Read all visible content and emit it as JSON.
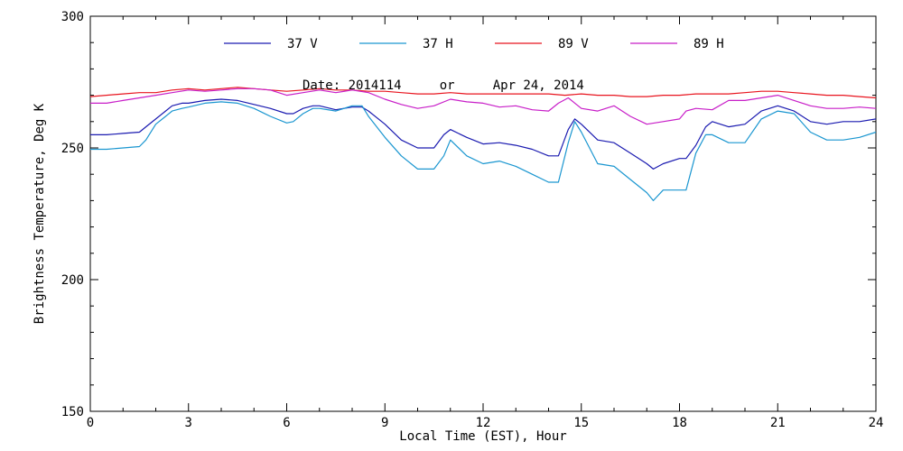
{
  "chart_data": {
    "type": "line",
    "annotation": "Date: 2014114     or     Apr 24, 2014",
    "xlabel": "Local Time (EST), Hour",
    "ylabel": "Brightness Temperature, Deg K",
    "xlim": [
      0,
      24
    ],
    "ylim": [
      150,
      300
    ],
    "xticks": [
      0,
      3,
      6,
      9,
      12,
      15,
      18,
      21,
      24
    ],
    "yticks": [
      150,
      200,
      250,
      300
    ],
    "legend_position": "top",
    "grid": false,
    "series": [
      {
        "name": "37 V",
        "color": "#1a1ab0",
        "x": [
          0,
          0.5,
          1,
          1.5,
          1.7,
          2,
          2.3,
          2.5,
          2.8,
          3,
          3.5,
          4,
          4.5,
          5,
          5.5,
          6,
          6.2,
          6.5,
          6.8,
          7,
          7.5,
          8,
          8.3,
          8.5,
          9,
          9.5,
          10,
          10.5,
          10.8,
          11,
          11.5,
          12,
          12.5,
          13,
          13.5,
          14,
          14.3,
          14.6,
          14.8,
          15,
          15.5,
          16,
          16.5,
          17,
          17.2,
          17.5,
          18,
          18.2,
          18.5,
          18.8,
          19,
          19.5,
          20,
          20.5,
          21,
          21.5,
          22,
          22.5,
          23,
          23.5,
          24
        ],
        "y": [
          255,
          255,
          255.5,
          256,
          258,
          261,
          264,
          266,
          267,
          267,
          268,
          268.5,
          268,
          266.5,
          265,
          263,
          263,
          265,
          266,
          266,
          264.5,
          265.5,
          265.5,
          264,
          259,
          253,
          250,
          250,
          255,
          257,
          254,
          251.5,
          252,
          251,
          249.5,
          247,
          247,
          257,
          261,
          259,
          253,
          252,
          248,
          244,
          242,
          244,
          246,
          246,
          251,
          258,
          260,
          258,
          259,
          264,
          266,
          264,
          260,
          259,
          260,
          260,
          261
        ]
      },
      {
        "name": "37 H",
        "color": "#1a96d0",
        "x": [
          0,
          0.5,
          1,
          1.5,
          1.7,
          2,
          2.3,
          2.5,
          2.8,
          3,
          3.5,
          4,
          4.5,
          5,
          5.5,
          6,
          6.2,
          6.5,
          6.8,
          7,
          7.5,
          8,
          8.3,
          8.5,
          9,
          9.5,
          10,
          10.5,
          10.8,
          11,
          11.5,
          12,
          12.5,
          13,
          13.5,
          14,
          14.3,
          14.6,
          14.8,
          15,
          15.5,
          16,
          16.5,
          17,
          17.2,
          17.5,
          18,
          18.2,
          18.5,
          18.8,
          19,
          19.5,
          20,
          20.5,
          21,
          21.5,
          22,
          22.5,
          23,
          23.5,
          24
        ],
        "y": [
          249.5,
          249.5,
          250,
          250.5,
          253,
          259,
          262,
          264,
          265,
          265.5,
          267,
          267.5,
          267,
          265,
          262,
          259.5,
          260,
          263,
          265,
          265,
          264,
          266,
          266,
          262,
          254,
          247,
          242,
          242,
          247,
          253,
          247,
          244,
          245,
          243,
          240,
          237,
          237,
          252,
          260,
          256,
          244,
          243,
          238,
          233,
          230,
          234,
          234,
          234,
          248,
          255,
          255,
          252,
          252,
          261,
          264,
          263,
          256,
          253,
          253,
          254,
          256
        ]
      },
      {
        "name": "89 V",
        "color": "#e8141e",
        "x": [
          0,
          1,
          1.5,
          2,
          2.5,
          3,
          3.5,
          4,
          4.5,
          5,
          5.5,
          6,
          6.5,
          7,
          7.5,
          8,
          8.5,
          9,
          9.5,
          10,
          10.5,
          11,
          11.5,
          12,
          12.5,
          13,
          13.5,
          14,
          14.5,
          15,
          15.5,
          16,
          16.5,
          17,
          17.5,
          18,
          18.5,
          19,
          19.5,
          20,
          20.5,
          21,
          21.5,
          22,
          22.5,
          23,
          23.5,
          24
        ],
        "y": [
          269.5,
          270.5,
          271,
          271,
          272,
          272.5,
          272,
          272.5,
          273,
          272.5,
          272,
          271.5,
          272,
          272.5,
          272,
          272,
          271.5,
          271.5,
          271,
          270.5,
          270.5,
          271,
          270.5,
          270.5,
          270.5,
          270.5,
          270.5,
          270.5,
          270,
          270.5,
          270,
          270,
          269.5,
          269.5,
          270,
          270,
          270.5,
          270.5,
          270.5,
          271,
          271.5,
          271.5,
          271,
          270.5,
          270,
          270,
          269.5,
          269
        ]
      },
      {
        "name": "89 H",
        "color": "#c81ec8",
        "x": [
          0,
          0.5,
          1,
          1.5,
          2,
          2.5,
          3,
          3.5,
          4,
          4.5,
          5,
          5.5,
          6,
          6.5,
          7,
          7.5,
          8,
          8.5,
          9,
          9.5,
          10,
          10.5,
          11,
          11.5,
          12,
          12.5,
          13,
          13.5,
          14,
          14.3,
          14.6,
          15,
          15.5,
          16,
          16.5,
          17,
          17.5,
          18,
          18.2,
          18.5,
          19,
          19.5,
          20,
          20.5,
          21,
          21.5,
          22,
          22.5,
          23,
          23.5,
          24
        ],
        "y": [
          267,
          267,
          268,
          269,
          270,
          271,
          272,
          271.5,
          272,
          272.5,
          272.5,
          272,
          270,
          271,
          272,
          271,
          272,
          271,
          268.5,
          266.5,
          265,
          266,
          268.5,
          267.5,
          267,
          265.5,
          266,
          264.5,
          264,
          267,
          269,
          265,
          264,
          266,
          262,
          259,
          260,
          261,
          264,
          265,
          264.5,
          268,
          268,
          269,
          270,
          268,
          266,
          265,
          265,
          265.5,
          265
        ]
      }
    ]
  }
}
